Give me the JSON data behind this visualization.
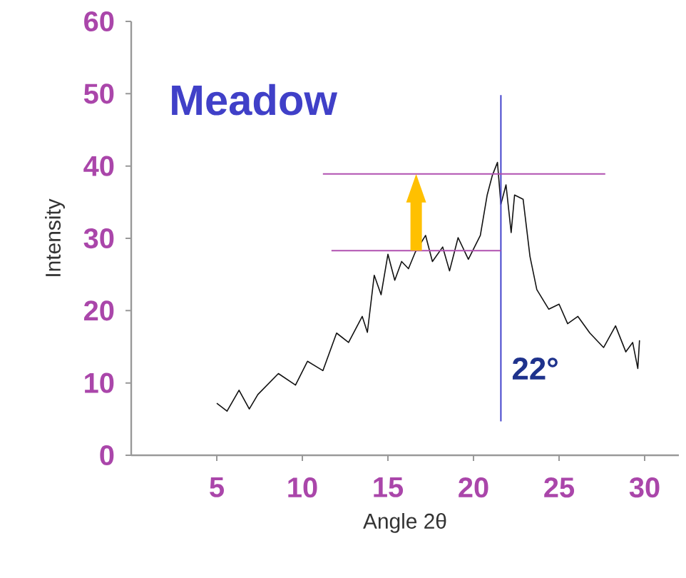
{
  "chart_data": {
    "type": "line",
    "title": "Meadow",
    "xlabel": "Angle  2θ",
    "ylabel": "Intensity",
    "xlim": [
      0,
      32
    ],
    "ylim": [
      0,
      60
    ],
    "xticks": [
      5,
      10,
      15,
      20,
      25,
      30
    ],
    "yticks": [
      0,
      10,
      20,
      30,
      40,
      50,
      60
    ],
    "series": [
      {
        "color": "#111111",
        "x": [
          5.0,
          5.6,
          6.3,
          6.9,
          7.4,
          8.6,
          9.6,
          10.3,
          11.2,
          12.0,
          12.7,
          13.5,
          13.8,
          14.2,
          14.6,
          15.0,
          15.4,
          15.8,
          16.2,
          16.6,
          17.2,
          17.6,
          18.2,
          18.6,
          19.1,
          19.7,
          20.4,
          20.8,
          21.1,
          21.4,
          21.6,
          21.9,
          22.2,
          22.4,
          22.9,
          23.3,
          23.7,
          24.4,
          25.0,
          25.5,
          26.1,
          26.8,
          27.6,
          28.3,
          28.9,
          29.3,
          29.6,
          29.7
        ],
        "values": [
          7.2,
          6.1,
          9.0,
          6.4,
          8.4,
          11.3,
          9.7,
          13.0,
          11.7,
          16.9,
          15.6,
          19.2,
          17.0,
          24.9,
          22.2,
          27.8,
          24.2,
          26.8,
          25.8,
          28.1,
          30.4,
          26.8,
          28.8,
          25.5,
          30.1,
          27.1,
          30.4,
          36.0,
          38.7,
          40.5,
          34.7,
          37.4,
          30.8,
          36.0,
          35.4,
          27.5,
          22.9,
          20.2,
          20.9,
          18.2,
          19.2,
          16.9,
          14.9,
          17.9,
          14.3,
          15.6,
          12.0,
          15.9
        ]
      },
      {
        "color": "#4444cc",
        "x": [
          21.6,
          21.6
        ],
        "values": [
          4.7,
          49.8
        ]
      },
      {
        "color": "#b050b0",
        "x": [
          11.2,
          27.7
        ],
        "values": [
          38.9,
          38.9
        ]
      },
      {
        "color": "#b050b0",
        "x": [
          11.7,
          21.6
        ],
        "values": [
          28.3,
          28.3
        ]
      }
    ],
    "annotations": [
      {
        "text": "22°",
        "x": 21.6,
        "y": 12
      }
    ]
  }
}
